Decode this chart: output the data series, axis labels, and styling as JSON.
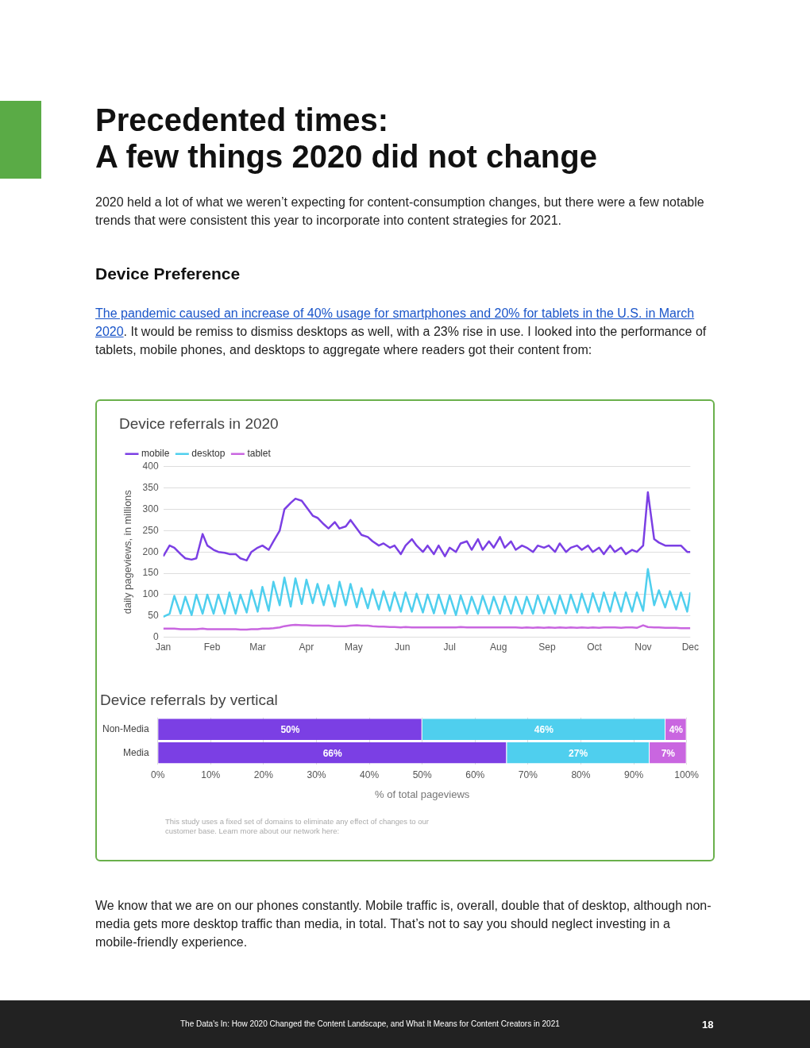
{
  "chart_data": [
    {
      "type": "line",
      "title": "Device referrals in 2020",
      "ylabel": "daily pageviews, in millions",
      "annotations": [
        "Precedented times:\nA few things 2020 did not change",
        "2020 held a lot of what we weren’t expecting for content-consumption changes, but there were a few notable trends that were consistent this year to incorporate into content strategies for 2021.",
        "Device Preference",
        "The pandemic caused an increase of 40% usage for smartphones and 20% for tablets in the U.S. in March 2020",
        ". It would be remiss to dismiss desktops as well, with a 23% rise in use. I looked into the performance of tablets, mobile phones, and desktops to aggregate where readers got their content from:"
      ],
      "x": [
        "2020-01-01",
        "2020-01-05",
        "2020-01-08",
        "2020-01-12",
        "2020-01-15",
        "2020-01-19",
        "2020-01-22",
        "2020-01-26",
        "2020-01-29",
        "2020-02-02",
        "2020-02-05",
        "2020-02-09",
        "2020-02-12",
        "2020-02-16",
        "2020-02-19",
        "2020-02-23",
        "2020-02-26",
        "2020-03-01",
        "2020-03-04",
        "2020-03-08",
        "2020-03-11",
        "2020-03-15",
        "2020-03-18",
        "2020-03-22",
        "2020-03-25",
        "2020-03-29",
        "2020-04-01",
        "2020-04-05",
        "2020-04-08",
        "2020-04-12",
        "2020-04-15",
        "2020-04-19",
        "2020-04-22",
        "2020-04-26",
        "2020-04-29",
        "2020-05-03",
        "2020-05-06",
        "2020-05-10",
        "2020-05-13",
        "2020-05-17",
        "2020-05-20",
        "2020-05-24",
        "2020-05-27",
        "2020-05-31",
        "2020-06-03",
        "2020-06-07",
        "2020-06-10",
        "2020-06-14",
        "2020-06-17",
        "2020-06-21",
        "2020-06-24",
        "2020-06-28",
        "2020-07-01",
        "2020-07-05",
        "2020-07-08",
        "2020-07-12",
        "2020-07-15",
        "2020-07-19",
        "2020-07-22",
        "2020-07-26",
        "2020-07-29",
        "2020-08-02",
        "2020-08-05",
        "2020-08-09",
        "2020-08-12",
        "2020-08-16",
        "2020-08-19",
        "2020-08-23",
        "2020-08-26",
        "2020-08-30",
        "2020-09-02",
        "2020-09-06",
        "2020-09-09",
        "2020-09-13",
        "2020-09-16",
        "2020-09-20",
        "2020-09-23",
        "2020-09-27",
        "2020-09-30",
        "2020-10-04",
        "2020-10-07",
        "2020-10-11",
        "2020-10-14",
        "2020-10-18",
        "2020-10-21",
        "2020-10-25",
        "2020-10-28",
        "2020-11-01",
        "2020-11-04",
        "2020-11-08",
        "2020-11-11",
        "2020-11-15",
        "2020-11-18",
        "2020-11-22",
        "2020-11-25",
        "2020-11-29",
        "2020-12-01"
      ],
      "series": [
        {
          "name": "mobile",
          "color": "#7b3fe4",
          "values": [
            190,
            215,
            210,
            195,
            185,
            182,
            185,
            242,
            215,
            205,
            200,
            198,
            195,
            195,
            185,
            180,
            200,
            210,
            215,
            205,
            225,
            250,
            300,
            315,
            325,
            320,
            305,
            285,
            280,
            265,
            255,
            270,
            255,
            260,
            275,
            255,
            240,
            235,
            225,
            215,
            220,
            210,
            215,
            195,
            215,
            230,
            215,
            200,
            215,
            195,
            215,
            190,
            210,
            200,
            220,
            225,
            205,
            230,
            205,
            225,
            210,
            235,
            210,
            225,
            205,
            215,
            210,
            200,
            215,
            210,
            215,
            200,
            220,
            200,
            210,
            215,
            205,
            215,
            200,
            210,
            195,
            215,
            200,
            210,
            195,
            205,
            200,
            215,
            340,
            230,
            222,
            215,
            215,
            215,
            215,
            200,
            200
          ]
        },
        {
          "name": "desktop",
          "color": "#4fcfee",
          "values": [
            48,
            55,
            97,
            55,
            95,
            52,
            100,
            55,
            100,
            55,
            100,
            55,
            105,
            55,
            100,
            58,
            110,
            60,
            118,
            62,
            130,
            75,
            140,
            72,
            138,
            78,
            135,
            80,
            125,
            75,
            122,
            72,
            130,
            75,
            125,
            70,
            115,
            68,
            112,
            65,
            108,
            62,
            105,
            60,
            105,
            60,
            102,
            58,
            100,
            56,
            100,
            55,
            98,
            52,
            98,
            55,
            95,
            55,
            97,
            55,
            95,
            55,
            96,
            55,
            95,
            55,
            95,
            55,
            98,
            56,
            95,
            55,
            98,
            56,
            100,
            58,
            102,
            58,
            103,
            60,
            105,
            60,
            105,
            60,
            105,
            60,
            105,
            62,
            160,
            75,
            110,
            70,
            108,
            65,
            105,
            60,
            105
          ]
        },
        {
          "name": "tablet",
          "color": "#c966e0",
          "values": [
            20,
            20,
            20,
            19,
            19,
            19,
            19,
            20,
            19,
            19,
            19,
            19,
            19,
            19,
            18,
            18,
            19,
            19,
            20,
            20,
            21,
            23,
            26,
            28,
            29,
            28,
            28,
            27,
            27,
            27,
            27,
            26,
            26,
            26,
            27,
            28,
            27,
            27,
            26,
            25,
            25,
            24,
            24,
            23,
            24,
            23,
            23,
            23,
            23,
            23,
            23,
            23,
            23,
            23,
            24,
            23,
            23,
            23,
            23,
            23,
            23,
            23,
            23,
            23,
            23,
            22,
            23,
            22,
            23,
            22,
            23,
            22,
            23,
            22,
            23,
            22,
            23,
            22,
            23,
            22,
            23,
            23,
            23,
            22,
            23,
            23,
            22,
            28,
            24,
            23,
            23,
            22,
            22,
            22,
            21,
            21,
            21
          ]
        }
      ],
      "xlim": [
        "2020-01-01",
        "2020-12-01"
      ],
      "xticks": [
        {
          "value": "2020-01-01",
          "label": "Jan"
        },
        {
          "value": "2020-02-01",
          "label": "Feb"
        },
        {
          "value": "2020-03-01",
          "label": "Mar"
        },
        {
          "value": "2020-04-01",
          "label": "Apr"
        },
        {
          "value": "2020-05-01",
          "label": "May"
        },
        {
          "value": "2020-06-01",
          "label": "Jun"
        },
        {
          "value": "2020-07-01",
          "label": "Jul"
        },
        {
          "value": "2020-08-01",
          "label": "Aug"
        },
        {
          "value": "2020-09-01",
          "label": "Sep"
        },
        {
          "value": "2020-10-01",
          "label": "Oct"
        },
        {
          "value": "2020-11-01",
          "label": "Nov"
        },
        {
          "value": "2020-12-01",
          "label": "Dec"
        }
      ],
      "ylim": [
        0,
        400
      ],
      "yticks": [
        0,
        50,
        100,
        150,
        200,
        250,
        300,
        350,
        400
      ],
      "grid": "y",
      "legend": "top left",
      "marker": "none",
      "line_style": "solid"
    },
    {
      "type": "bar",
      "orientation": "horizontal",
      "stacked": true,
      "title": "Device referrals by vertical",
      "xlabel": "% of total pageviews",
      "annotations": [
        "This study uses a fixed set of domains to eliminate any effect of changes to our customer base. Learn more about our network here:",
        "We know that we are on our phones constantly. Mobile traffic is, overall, double that of desktop, although non-media gets more desktop traffic than media, in total. That’s not to say you should neglect investing in a mobile-friendly experience.",
        "The Data's In: How 2020 Changed the Content Landscape, and What It Means for Content Creators in 2021",
        "18"
      ],
      "categories": [
        "Non-Media",
        "Media"
      ],
      "series": [
        {
          "color": "#7b3fe4",
          "values": [
            50,
            66
          ],
          "value_labels": [
            "50%",
            "66%"
          ]
        },
        {
          "color": "#4fcfee",
          "values": [
            46,
            27
          ],
          "value_labels": [
            "46%",
            "27%"
          ]
        },
        {
          "color": "#c966e0",
          "values": [
            4,
            7
          ],
          "value_labels": [
            "4%",
            "7%"
          ]
        }
      ],
      "xlim": [
        0,
        100
      ],
      "xticks": [
        {
          "value": 0,
          "label": "0%"
        },
        {
          "value": 10,
          "label": "10%"
        },
        {
          "value": 20,
          "label": "20%"
        },
        {
          "value": 30,
          "label": "30%"
        },
        {
          "value": 40,
          "label": "40%"
        },
        {
          "value": 50,
          "label": "50%"
        },
        {
          "value": 60,
          "label": "60%"
        },
        {
          "value": 70,
          "label": "70%"
        },
        {
          "value": 80,
          "label": "80%"
        },
        {
          "value": 90,
          "label": "90%"
        },
        {
          "value": 100,
          "label": "100%"
        }
      ],
      "grid": "x",
      "legend": false
    }
  ]
}
